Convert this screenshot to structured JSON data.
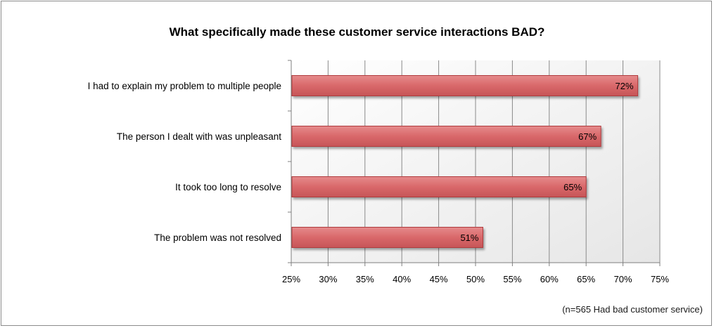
{
  "chart_data": {
    "type": "bar",
    "orientation": "horizontal",
    "title": "What specifically made these customer service interactions BAD?",
    "categories": [
      "I had to explain my problem to multiple people",
      "The person I dealt with was unpleasant",
      "It took too long to resolve",
      "The problem was not resolved"
    ],
    "values": [
      72,
      67,
      65,
      51
    ],
    "value_labels": [
      "72%",
      "67%",
      "65%",
      "51%"
    ],
    "xlim": [
      25,
      75
    ],
    "xticks": [
      25,
      30,
      35,
      40,
      45,
      50,
      55,
      60,
      65,
      70,
      75
    ],
    "xtick_labels": [
      "25%",
      "30%",
      "35%",
      "40%",
      "45%",
      "50%",
      "55%",
      "60%",
      "65%",
      "70%",
      "75%"
    ],
    "xlabel": "",
    "ylabel": "",
    "grid": "vertical",
    "legend": "none",
    "bar_color": "#d9686a",
    "bar_edge_color": "#b03a3c"
  },
  "footnote": "(n=565 Had bad customer service)"
}
